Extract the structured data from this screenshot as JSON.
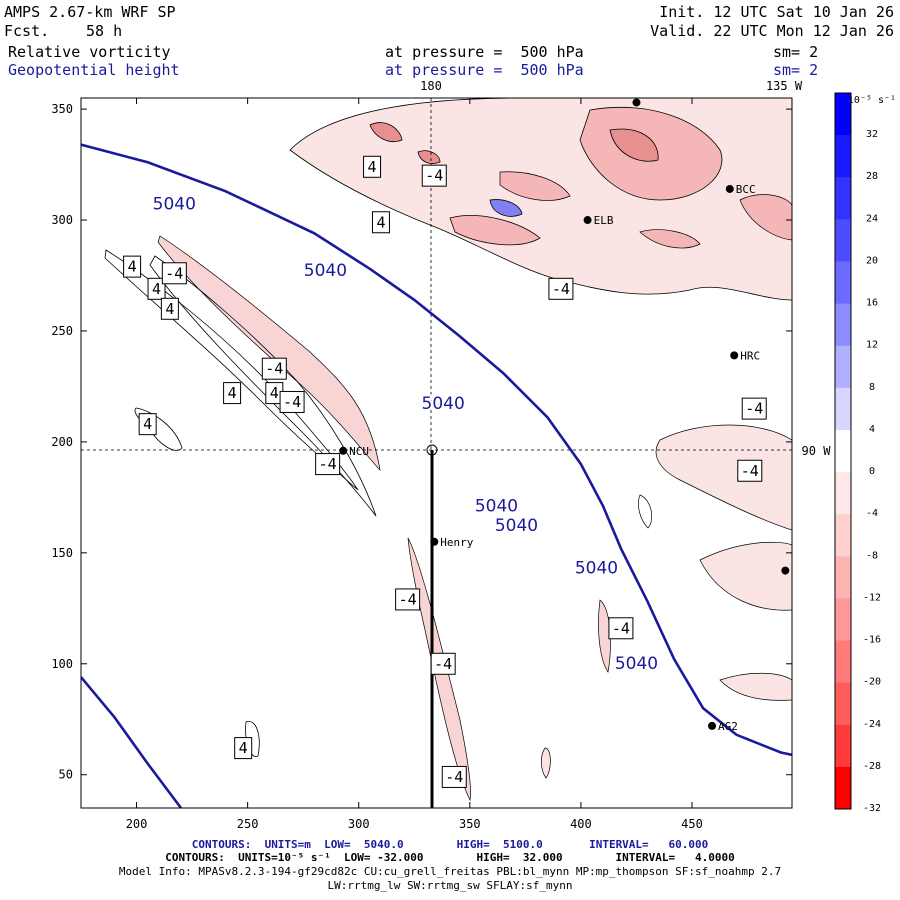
{
  "header": {
    "model": "AMPS 2.67-km WRF SP",
    "fcst_label": "Fcst.",
    "fcst_value": "58 h",
    "init": "Init. 12 UTC Sat 10 Jan 26",
    "valid": "Valid. 22 UTC Mon 12 Jan 26",
    "field1": "Relative vorticity",
    "field1_pressure": "at pressure =  500 hPa",
    "field1_sm": "sm= 2",
    "field2": "Geopotential height",
    "field2_pressure": "at pressure =  500 hPa",
    "field2_sm": "sm= 2"
  },
  "map": {
    "top_labels": [
      "180",
      "135 W"
    ],
    "right_label": "90 W",
    "x_ticks": [
      200,
      250,
      300,
      350,
      400,
      450
    ],
    "y_ticks": [
      50,
      100,
      150,
      200,
      250,
      300,
      350
    ],
    "x_range": [
      175,
      495
    ],
    "y_range": [
      35,
      355
    ],
    "height_contours": [
      {
        "label": "5040",
        "line": [
          [
            175,
            334
          ],
          [
            205,
            326
          ],
          [
            240,
            313
          ],
          [
            280,
            294
          ],
          [
            305,
            278
          ],
          [
            325,
            264
          ],
          [
            345,
            248
          ],
          [
            365,
            231
          ],
          [
            385,
            211
          ],
          [
            400,
            190
          ],
          [
            410,
            171
          ],
          [
            418,
            152
          ],
          [
            430,
            128
          ],
          [
            442,
            102
          ],
          [
            455,
            80
          ],
          [
            470,
            68
          ],
          [
            490,
            60
          ],
          [
            495,
            59
          ]
        ]
      },
      {
        "label": "5040",
        "line": [
          [
            175,
            94
          ],
          [
            190,
            76
          ],
          [
            205,
            55
          ],
          [
            220,
            35
          ]
        ]
      }
    ],
    "height_labels": [
      [
        217,
        307
      ],
      [
        285,
        277
      ],
      [
        338,
        217
      ],
      [
        362,
        171
      ],
      [
        371,
        162
      ],
      [
        407,
        143
      ],
      [
        425,
        100
      ]
    ],
    "vorticity_labels": [
      {
        "text": "4",
        "x": 306,
        "y": 324
      },
      {
        "text": "-4",
        "x": 334,
        "y": 320
      },
      {
        "text": "4",
        "x": 310,
        "y": 299
      },
      {
        "text": "4",
        "x": 198,
        "y": 279
      },
      {
        "text": "4",
        "x": 209,
        "y": 269
      },
      {
        "text": "-4",
        "x": 217,
        "y": 276
      },
      {
        "text": "4",
        "x": 215,
        "y": 260
      },
      {
        "text": "-4",
        "x": 262,
        "y": 233
      },
      {
        "text": "4",
        "x": 243,
        "y": 222
      },
      {
        "text": "4",
        "x": 262,
        "y": 222
      },
      {
        "text": "-4",
        "x": 270,
        "y": 218
      },
      {
        "text": "4",
        "x": 205,
        "y": 208
      },
      {
        "text": "-4",
        "x": 286,
        "y": 190
      },
      {
        "text": "-4",
        "x": 322,
        "y": 129
      },
      {
        "text": "-4",
        "x": 338,
        "y": 100
      },
      {
        "text": "-4",
        "x": 343,
        "y": 49
      },
      {
        "text": "4",
        "x": 248,
        "y": 62
      },
      {
        "text": "-4",
        "x": 391,
        "y": 269
      },
      {
        "text": "-4",
        "x": 478,
        "y": 215
      },
      {
        "text": "-4",
        "x": 476,
        "y": 187
      },
      {
        "text": "-4",
        "x": 418,
        "y": 116
      }
    ],
    "stations": [
      {
        "name": "NCU",
        "x": 293,
        "y": 196
      },
      {
        "name": "Henry",
        "x": 334,
        "y": 155
      },
      {
        "name": "HRC",
        "x": 469,
        "y": 239
      },
      {
        "name": "AG2",
        "x": 459,
        "y": 72
      },
      {
        "name": "BCC",
        "x": 467,
        "y": 314
      },
      {
        "name": "ELB",
        "x": 403,
        "y": 300
      },
      {
        "name": "",
        "x": 425,
        "y": 353
      },
      {
        "name": "",
        "x": 492,
        "y": 142
      }
    ]
  },
  "colorbar": {
    "unit": "10⁻⁵ s⁻¹",
    "labels": [
      "32",
      "28",
      "24",
      "20",
      "16",
      "12",
      "8",
      "4",
      "0",
      "-4",
      "-8",
      "-12",
      "-16",
      "-20",
      "-24",
      "-28",
      "-32"
    ],
    "colors": [
      "#0000ff",
      "#1a1aff",
      "#3333ff",
      "#4d4dff",
      "#6b6bff",
      "#8c8cff",
      "#b0b0ff",
      "#d6d6ff",
      "#ffffff",
      "#ffe8e8",
      "#ffd0d0",
      "#ffb4b4",
      "#ff9898",
      "#ff7a7a",
      "#ff5c5c",
      "#ff3a3a",
      "#ff0000"
    ]
  },
  "footer": {
    "line1": "CONTOURS:  UNITS=m  LOW=  5040.0        HIGH=  5100.0       INTERVAL=   60.000",
    "line2": "CONTOURS:  UNITS=10⁻⁵ s⁻¹  LOW= -32.000        HIGH=  32.000        INTERVAL=   4.0000",
    "line3": "Model Info: MPASv8.2.3-194-gf29cd82c CU:cu_grell_freitas PBL:bl_mynn MP:mp_thompson SF:sf_noahmp 2.7",
    "line4": "LW:rrtmg_lw SW:rrtmg_sw SFLAY:sf_mynn"
  },
  "colors": {
    "height_line": "#1a1a9c",
    "vort_neg_fill": "#f4b6b6",
    "vort_pos_fill": "#7f7ff0"
  }
}
